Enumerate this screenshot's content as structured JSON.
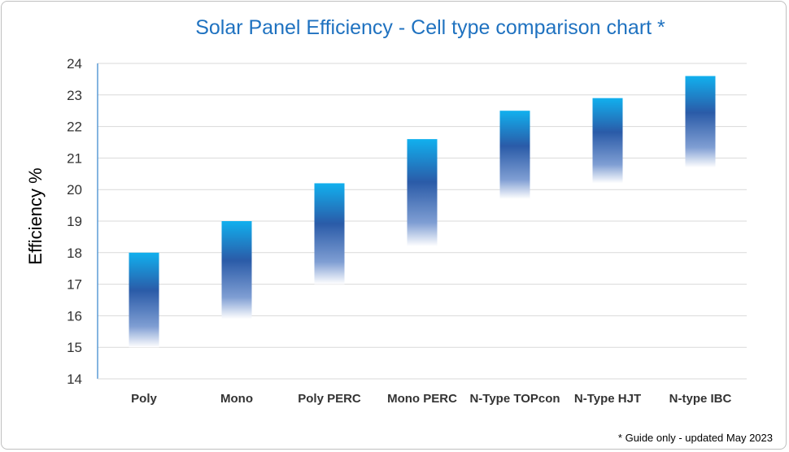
{
  "chart_data": {
    "type": "bar",
    "subtype": "floating-range",
    "title": "Solar Panel Efficiency - Cell type comparison chart *",
    "ylabel": "Efficiency %",
    "xlabel": "",
    "footnote": "* Guide only - updated May 2023",
    "categories": [
      "Poly",
      "Mono",
      "Poly PERC",
      "Mono PERC",
      "N-Type TOPcon",
      "N-Type HJT",
      "N-type IBC"
    ],
    "ranges": [
      {
        "low": 15.0,
        "high": 18.0
      },
      {
        "low": 15.9,
        "high": 19.0
      },
      {
        "low": 17.0,
        "high": 20.2
      },
      {
        "low": 18.2,
        "high": 21.6
      },
      {
        "low": 19.7,
        "high": 22.5
      },
      {
        "low": 20.2,
        "high": 22.9
      },
      {
        "low": 20.7,
        "high": 23.6
      }
    ],
    "yticks": [
      14,
      15,
      16,
      17,
      18,
      19,
      20,
      21,
      22,
      23,
      24
    ],
    "ylim": [
      14,
      24
    ],
    "grid": true,
    "colors": {
      "title": "#1f72c0",
      "bar_top": "#11b0ee",
      "bar_mid": "#2a5ba8",
      "bar_low": "#7f9ed3",
      "bar_fade": "#ffffff",
      "grid": "#d9d9d9",
      "axis": "#5b9bd5"
    }
  }
}
